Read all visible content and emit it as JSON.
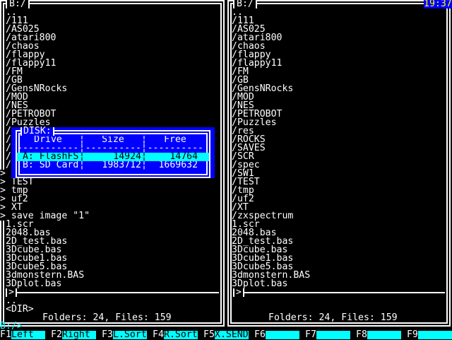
{
  "left_panel": {
    "title": "B:/",
    "items": [
      {
        "row": 1,
        "text": ".."
      },
      {
        "row": 2,
        "text": "/111"
      },
      {
        "row": 3,
        "text": "/AS025"
      },
      {
        "row": 4,
        "text": "/atari800"
      },
      {
        "row": 5,
        "text": "/chaos"
      },
      {
        "row": 6,
        "text": "/flappy"
      },
      {
        "row": 7,
        "text": "/flappy11"
      },
      {
        "row": 8,
        "text": "/FM"
      },
      {
        "row": 9,
        "text": "/GB"
      },
      {
        "row": 10,
        "text": "/GensNRocks"
      },
      {
        "row": 11,
        "text": "/MOD"
      },
      {
        "row": 12,
        "text": "/NES"
      },
      {
        "row": 13,
        "text": "/PETROBOT"
      },
      {
        "row": 14,
        "text": "/Puzzles"
      },
      {
        "row": 15,
        "text": "/"
      },
      {
        "row": 16,
        "text": "/"
      },
      {
        "row": 17,
        "text": "/"
      },
      {
        "row": 18,
        "text": "/"
      },
      {
        "row": 19,
        "text": "/"
      },
      {
        "row": 20,
        "text": ">",
        "marker": true
      },
      {
        "row": 21,
        "text": "> TEST",
        "marker": true
      },
      {
        "row": 22,
        "text": "> tmp",
        "marker": true
      },
      {
        "row": 23,
        "text": "> uf2",
        "marker": true
      },
      {
        "row": 24,
        "text": "> XT",
        "marker": true
      },
      {
        "row": 25,
        "text": "> save image \"1\"",
        "marker": true
      },
      {
        "row": 26,
        "text": "1.scr"
      },
      {
        "row": 27,
        "text": "2048.bas"
      },
      {
        "row": 28,
        "text": "2D_test.bas"
      },
      {
        "row": 29,
        "text": "3Dcube.bas"
      },
      {
        "row": 30,
        "text": "3Dcube1.bas"
      },
      {
        "row": 31,
        "text": "3Dcube5.bas"
      },
      {
        "row": 32,
        "text": "3dmonstern.BAS"
      },
      {
        "row": 33,
        "text": "3Dplot.bas"
      }
    ],
    "cmd_marker": ">",
    "info_name": "..",
    "info_type": "<DIR>",
    "footer": "Folders: 24, Files: 159"
  },
  "right_panel": {
    "title": "B:/",
    "items": [
      {
        "row": 1,
        "text": ".."
      },
      {
        "row": 2,
        "text": "/111"
      },
      {
        "row": 3,
        "text": "/AS025"
      },
      {
        "row": 4,
        "text": "/atari800"
      },
      {
        "row": 5,
        "text": "/chaos"
      },
      {
        "row": 6,
        "text": "/flappy"
      },
      {
        "row": 7,
        "text": "/flappy11"
      },
      {
        "row": 8,
        "text": "/FM"
      },
      {
        "row": 9,
        "text": "/GB"
      },
      {
        "row": 10,
        "text": "/GensNRocks"
      },
      {
        "row": 11,
        "text": "/MOD"
      },
      {
        "row": 12,
        "text": "/NES"
      },
      {
        "row": 13,
        "text": "/PETROBOT"
      },
      {
        "row": 14,
        "text": "/Puzzles"
      },
      {
        "row": 15,
        "text": "/res"
      },
      {
        "row": 16,
        "text": "/ROCKS"
      },
      {
        "row": 17,
        "text": "/SAVES"
      },
      {
        "row": 18,
        "text": "/SCR"
      },
      {
        "row": 19,
        "text": "/spec"
      },
      {
        "row": 20,
        "text": "/SW1"
      },
      {
        "row": 21,
        "text": "/TEST"
      },
      {
        "row": 22,
        "text": "/tmp"
      },
      {
        "row": 23,
        "text": "/uf2"
      },
      {
        "row": 24,
        "text": "/XT"
      },
      {
        "row": 25,
        "text": "/zxspectrum"
      },
      {
        "row": 26,
        "text": "1.scr"
      },
      {
        "row": 27,
        "text": "2048.bas"
      },
      {
        "row": 28,
        "text": "2D_test.bas"
      },
      {
        "row": 29,
        "text": "3Dcube.bas"
      },
      {
        "row": 30,
        "text": "3Dcube1.bas"
      },
      {
        "row": 31,
        "text": "3Dcube5.bas"
      },
      {
        "row": 32,
        "text": "3dmonstern.BAS"
      },
      {
        "row": 33,
        "text": "3Dplot.bas"
      }
    ],
    "cmd_marker": ">",
    "footer": "Folders: 24, Files: 159"
  },
  "clock": "19:37",
  "prompt": "B:/>",
  "disk_dialog": {
    "title": "DISK:",
    "headers": [
      "Drive",
      "Size",
      "Free"
    ],
    "dashes": [
      "-----------",
      "----------",
      "----------"
    ],
    "separator": "¦",
    "rows": [
      {
        "drive": " A: FlashFS",
        "size": "14924",
        "free": "14764 ",
        "selected": true
      },
      {
        "drive": " B: SD Card",
        "size": "1983712",
        "free": "1669632 ",
        "selected": false
      }
    ]
  },
  "function_keys": [
    {
      "key": "F1",
      "label": "Left"
    },
    {
      "key": "F2",
      "label": "Right"
    },
    {
      "key": "F3",
      "label": "L.Sort"
    },
    {
      "key": "F4",
      "label": "R.Sort"
    },
    {
      "key": "F5",
      "label": "X.SEND"
    },
    {
      "key": "F6",
      "label": ""
    },
    {
      "key": "F7",
      "label": ""
    },
    {
      "key": "F8",
      "label": ""
    },
    {
      "key": "F9",
      "label": ""
    }
  ],
  "colors": {
    "background": "#000000",
    "text": "#ffffff",
    "dialog": "#0000ff",
    "highlight": "#00ffff",
    "clock_text": "#ffff00"
  }
}
